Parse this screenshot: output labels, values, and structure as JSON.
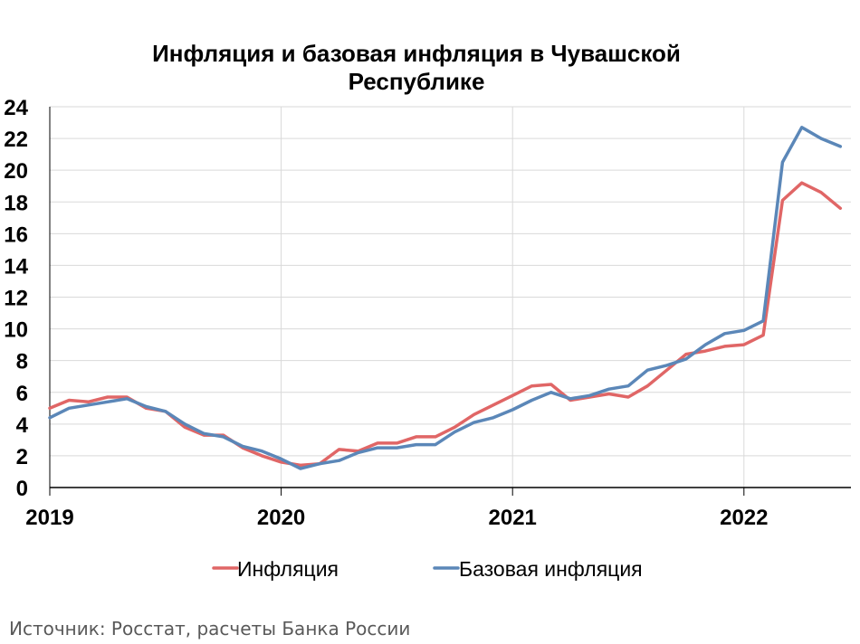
{
  "chart_data": {
    "type": "line",
    "title_lines": [
      "Инфляция и базовая инфляция в Чувашской",
      "Республике"
    ],
    "xlabel": "",
    "ylabel": "",
    "ylim": [
      0,
      24
    ],
    "yticks": [
      0,
      2,
      4,
      6,
      8,
      10,
      12,
      14,
      16,
      18,
      20,
      22,
      24
    ],
    "xlim": [
      "2019-01",
      "2022-06"
    ],
    "xticks": [
      {
        "value": "2019-01",
        "label": "2019"
      },
      {
        "value": "2020-01",
        "label": "2020"
      },
      {
        "value": "2021-01",
        "label": "2021"
      },
      {
        "value": "2022-01",
        "label": "2022"
      }
    ],
    "grid": true,
    "legend": "bottom-center",
    "x": [
      "2019-01",
      "2019-02",
      "2019-03",
      "2019-04",
      "2019-05",
      "2019-06",
      "2019-07",
      "2019-08",
      "2019-09",
      "2019-10",
      "2019-11",
      "2019-12",
      "2020-01",
      "2020-02",
      "2020-03",
      "2020-04",
      "2020-05",
      "2020-06",
      "2020-07",
      "2020-08",
      "2020-09",
      "2020-10",
      "2020-11",
      "2020-12",
      "2021-01",
      "2021-02",
      "2021-03",
      "2021-04",
      "2021-05",
      "2021-06",
      "2021-07",
      "2021-08",
      "2021-09",
      "2021-10",
      "2021-11",
      "2021-12",
      "2022-01",
      "2022-02",
      "2022-03",
      "2022-04",
      "2022-05",
      "2022-06"
    ],
    "series": [
      {
        "name": "Инфляция",
        "color": "#E06666",
        "values": [
          5.0,
          5.5,
          5.4,
          5.7,
          5.7,
          5.0,
          4.8,
          3.8,
          3.3,
          3.3,
          2.5,
          2.0,
          1.6,
          1.4,
          1.5,
          2.4,
          2.3,
          2.8,
          2.8,
          3.2,
          3.2,
          3.8,
          4.6,
          5.2,
          5.8,
          6.4,
          6.5,
          5.5,
          5.7,
          5.9,
          5.7,
          6.4,
          7.4,
          8.4,
          8.6,
          8.9,
          9.0,
          9.6,
          18.1,
          19.2,
          18.6,
          17.6
        ]
      },
      {
        "name": "Базовая инфляция",
        "color": "#5B87B8",
        "values": [
          4.4,
          5.0,
          5.2,
          5.4,
          5.6,
          5.1,
          4.8,
          4.0,
          3.4,
          3.2,
          2.6,
          2.3,
          1.8,
          1.2,
          1.5,
          1.7,
          2.2,
          2.5,
          2.5,
          2.7,
          2.7,
          3.5,
          4.1,
          4.4,
          4.9,
          5.5,
          6.0,
          5.6,
          5.8,
          6.2,
          6.4,
          7.4,
          7.7,
          8.1,
          9.0,
          9.7,
          9.9,
          10.5,
          20.5,
          22.7,
          22.0,
          21.5
        ]
      }
    ]
  },
  "source_note": "Источник: Росстат, расчеты Банка России"
}
